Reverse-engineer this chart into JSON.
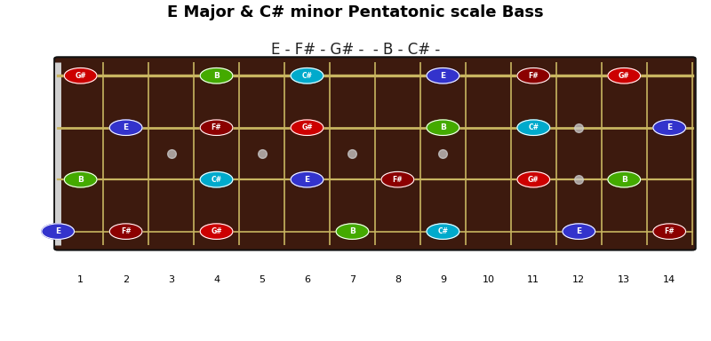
{
  "title": "E Major & C# minor Pentatonic scale Bass",
  "subtitle": "E - F# - G# -  - B - C# -",
  "frets": 14,
  "strings": 4,
  "fret_markers": [
    3,
    5,
    7,
    9,
    12
  ],
  "bg_color": "#ffffff",
  "fretboard_color": "#3d1a0e",
  "string_color": "#c8b560",
  "fret_color": "#c8b560",
  "nut_color": "#d0d0d0",
  "dot_color": "#cccccc",
  "notes": [
    {
      "string": 0,
      "fret": 0,
      "note": "E",
      "color": "#3333cc"
    },
    {
      "string": 0,
      "fret": 2,
      "note": "F#",
      "color": "#8b0000"
    },
    {
      "string": 0,
      "fret": 4,
      "note": "G#",
      "color": "#cc0000"
    },
    {
      "string": 0,
      "fret": 7,
      "note": "B",
      "color": "#44aa00"
    },
    {
      "string": 0,
      "fret": 9,
      "note": "C#",
      "color": "#00aacc"
    },
    {
      "string": 0,
      "fret": 12,
      "note": "E",
      "color": "#3333cc"
    },
    {
      "string": 0,
      "fret": 14,
      "note": "F#",
      "color": "#8b0000"
    },
    {
      "string": 1,
      "fret": 1,
      "note": "B",
      "color": "#44aa00"
    },
    {
      "string": 1,
      "fret": 4,
      "note": "C#",
      "color": "#00aacc"
    },
    {
      "string": 1,
      "fret": 6,
      "note": "E",
      "color": "#3333cc"
    },
    {
      "string": 1,
      "fret": 8,
      "note": "F#",
      "color": "#8b0000"
    },
    {
      "string": 1,
      "fret": 11,
      "note": "G#",
      "color": "#cc0000"
    },
    {
      "string": 1,
      "fret": 13,
      "note": "B",
      "color": "#44aa00"
    },
    {
      "string": 2,
      "fret": 2,
      "note": "E",
      "color": "#3333cc"
    },
    {
      "string": 2,
      "fret": 4,
      "note": "F#",
      "color": "#8b0000"
    },
    {
      "string": 2,
      "fret": 6,
      "note": "G#",
      "color": "#cc0000"
    },
    {
      "string": 2,
      "fret": 9,
      "note": "B",
      "color": "#44aa00"
    },
    {
      "string": 2,
      "fret": 11,
      "note": "C#",
      "color": "#00aacc"
    },
    {
      "string": 2,
      "fret": 14,
      "note": "E",
      "color": "#3333cc"
    },
    {
      "string": 3,
      "fret": 1,
      "note": "G#",
      "color": "#cc0000"
    },
    {
      "string": 3,
      "fret": 4,
      "note": "B",
      "color": "#44aa00"
    },
    {
      "string": 3,
      "fret": 6,
      "note": "C#",
      "color": "#00aacc"
    },
    {
      "string": 3,
      "fret": 9,
      "note": "E",
      "color": "#3333cc"
    },
    {
      "string": 3,
      "fret": 11,
      "note": "F#",
      "color": "#8b0000"
    },
    {
      "string": 3,
      "fret": 13,
      "note": "G#",
      "color": "#cc0000"
    }
  ]
}
